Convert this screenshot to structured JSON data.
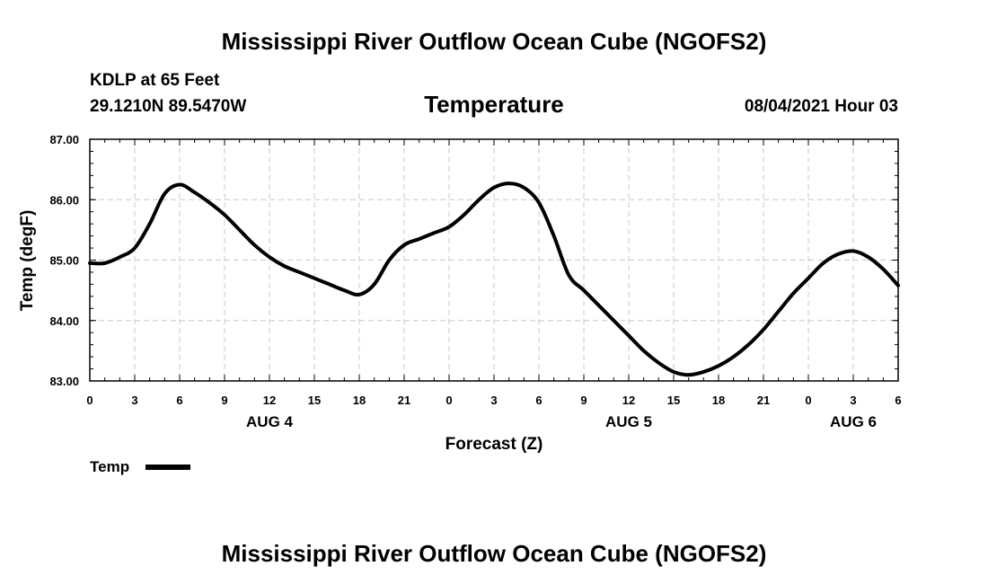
{
  "page_title": "Mississippi River Outflow Ocean Cube (NGOFS2)",
  "station": "KDLP at 65 Feet",
  "coords": "29.1210N  89.5470W",
  "timestamp": "08/04/2021 Hour 03",
  "footer_title": "Mississippi River Outflow Ocean Cube (NGOFS2)",
  "colors": {
    "line": "#000000",
    "grid": "#c8c8c8"
  },
  "chart_data": {
    "type": "line",
    "title": "Temperature",
    "xlabel": "Forecast (Z)",
    "ylabel": "Temp (degF)",
    "xlim": [
      0,
      54
    ],
    "ylim": [
      83.0,
      87.0
    ],
    "yticks": [
      "83.00",
      "84.00",
      "85.00",
      "86.00",
      "87.00"
    ],
    "xticks": [
      "0",
      "3",
      "6",
      "9",
      "12",
      "15",
      "18",
      "21",
      "0",
      "3",
      "6",
      "9",
      "12",
      "15",
      "18",
      "21",
      "0",
      "3",
      "6"
    ],
    "day_labels": [
      {
        "label": "AUG 4",
        "hour": 12
      },
      {
        "label": "AUG 5",
        "hour": 36
      },
      {
        "label": "AUG 6",
        "hour": 51
      }
    ],
    "grid": true,
    "legend": {
      "position": "bottom-left",
      "label": "Temp"
    },
    "series": [
      {
        "name": "Temp",
        "x": [
          0,
          1,
          2,
          3,
          4,
          5,
          6,
          7,
          8,
          9,
          10,
          11,
          12,
          13,
          14,
          15,
          16,
          17,
          18,
          19,
          20,
          21,
          22,
          23,
          24,
          25,
          26,
          27,
          28,
          29,
          30,
          31,
          32,
          33,
          34,
          35,
          36,
          37,
          38,
          39,
          40,
          41,
          42,
          43,
          44,
          45,
          46,
          47,
          48,
          49,
          50,
          51,
          52,
          53,
          54
        ],
        "values": [
          84.95,
          84.95,
          85.05,
          85.2,
          85.6,
          86.1,
          86.25,
          86.12,
          85.95,
          85.75,
          85.5,
          85.25,
          85.05,
          84.9,
          84.8,
          84.7,
          84.6,
          84.5,
          84.43,
          84.6,
          85.0,
          85.25,
          85.35,
          85.45,
          85.55,
          85.75,
          86.0,
          86.2,
          86.27,
          86.2,
          85.95,
          85.4,
          84.75,
          84.5,
          84.25,
          84.0,
          83.75,
          83.5,
          83.3,
          83.15,
          83.1,
          83.15,
          83.25,
          83.4,
          83.6,
          83.85,
          84.15,
          84.45,
          84.7,
          84.95,
          85.1,
          85.15,
          85.05,
          84.85,
          84.58
        ]
      }
    ]
  }
}
